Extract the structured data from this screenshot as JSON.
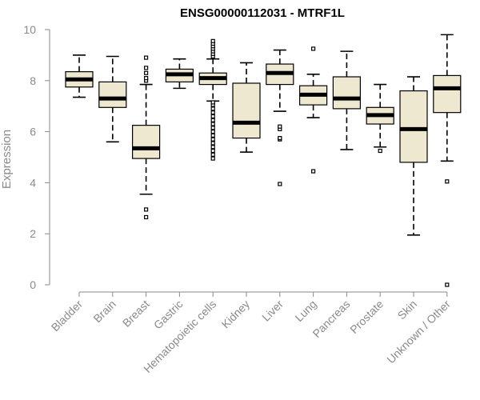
{
  "chart_data": {
    "type": "boxplot",
    "title": "ENSG00000112031 - MTRF1L",
    "xlabel": "",
    "ylabel": "Expression",
    "ylim": [
      0,
      10
    ],
    "yticks": [
      0,
      2,
      4,
      6,
      8,
      10
    ],
    "grid": false,
    "legend": "none",
    "box_fill": "#efe8d0",
    "median_color": "#000000",
    "categories": [
      "Bladder",
      "Brain",
      "Breast",
      "Gastric",
      "Hematopoietic cells",
      "Kidney",
      "Liver",
      "Lung",
      "Pancreas",
      "Prostate",
      "Skin",
      "Unknown / Other"
    ],
    "boxes": [
      {
        "category": "Bladder",
        "whisker_low": 7.35,
        "q1": 7.75,
        "median": 8.05,
        "q3": 8.35,
        "whisker_high": 9.0,
        "outliers": []
      },
      {
        "category": "Brain",
        "whisker_low": 5.6,
        "q1": 6.95,
        "median": 7.3,
        "q3": 7.95,
        "whisker_high": 8.95,
        "outliers": []
      },
      {
        "category": "Breast",
        "whisker_low": 3.55,
        "q1": 4.95,
        "median": 5.35,
        "q3": 6.25,
        "whisker_high": 7.85,
        "outliers": [
          2.65,
          2.95,
          8.0,
          8.1,
          8.3,
          8.5,
          8.9
        ]
      },
      {
        "category": "Gastric",
        "whisker_low": 7.7,
        "q1": 7.95,
        "median": 8.25,
        "q3": 8.45,
        "whisker_high": 8.85,
        "outliers": []
      },
      {
        "category": "Hematopoietic cells",
        "whisker_low": 7.2,
        "q1": 7.85,
        "median": 8.1,
        "q3": 8.3,
        "whisker_high": 8.85,
        "outliers": [
          4.95,
          5.1,
          5.25,
          5.4,
          5.55,
          5.7,
          5.85,
          6.0,
          6.15,
          6.3,
          6.45,
          6.6,
          6.75,
          6.9,
          7.05,
          7.15,
          8.95,
          9.05,
          9.15,
          9.25,
          9.35,
          9.45,
          9.55
        ]
      },
      {
        "category": "Kidney",
        "whisker_low": 5.2,
        "q1": 5.75,
        "median": 6.35,
        "q3": 7.9,
        "whisker_high": 8.7,
        "outliers": []
      },
      {
        "category": "Liver",
        "whisker_low": 6.8,
        "q1": 7.85,
        "median": 8.3,
        "q3": 8.65,
        "whisker_high": 9.2,
        "outliers": [
          3.95,
          5.7,
          5.75,
          6.1,
          6.2
        ]
      },
      {
        "category": "Lung",
        "whisker_low": 6.55,
        "q1": 7.05,
        "median": 7.45,
        "q3": 7.8,
        "whisker_high": 8.25,
        "outliers": [
          4.45,
          9.25
        ]
      },
      {
        "category": "Pancreas",
        "whisker_low": 5.3,
        "q1": 6.9,
        "median": 7.3,
        "q3": 8.15,
        "whisker_high": 9.15,
        "outliers": []
      },
      {
        "category": "Prostate",
        "whisker_low": 5.4,
        "q1": 6.3,
        "median": 6.65,
        "q3": 6.95,
        "whisker_high": 7.85,
        "outliers": [
          5.25
        ]
      },
      {
        "category": "Skin",
        "whisker_low": 1.95,
        "q1": 4.8,
        "median": 6.1,
        "q3": 7.6,
        "whisker_high": 8.15,
        "outliers": []
      },
      {
        "category": "Unknown / Other",
        "whisker_low": 4.85,
        "q1": 6.75,
        "median": 7.7,
        "q3": 8.2,
        "whisker_high": 9.8,
        "outliers": [
          0.0,
          4.05
        ]
      }
    ]
  }
}
